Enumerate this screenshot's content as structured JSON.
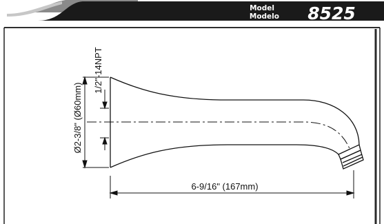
{
  "header": {
    "model_label_en": "Model",
    "model_label_es": "Modelo",
    "model_number": "8525",
    "bar_color": "#1a1a1a",
    "text_color": "#ffffff"
  },
  "drawing": {
    "thread_label": "1/2\"-14NPT",
    "diameter_label": "Ø2-3/8\" (Ø60mm)",
    "length_label": "6-9/16\" (167mm)",
    "line_color": "#111111"
  }
}
